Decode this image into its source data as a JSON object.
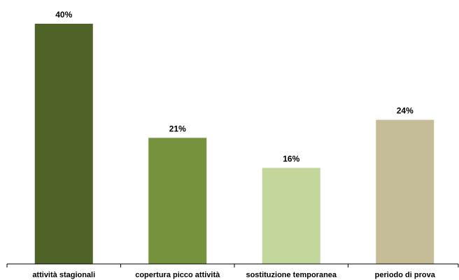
{
  "chart_data": {
    "type": "bar",
    "categories": [
      "attività stagionali",
      "copertura picco attività",
      "sostituzione temporanea",
      "periodo di prova"
    ],
    "values": [
      40,
      21,
      16,
      24
    ],
    "value_labels": [
      "40%",
      "21%",
      "16%",
      "24%"
    ],
    "colors": [
      "#4f6228",
      "#76923c",
      "#c3d69b",
      "#c4bd97"
    ],
    "ylim": [
      0,
      40
    ],
    "grid": false,
    "legend": "none",
    "title": "",
    "xlabel": "",
    "ylabel": ""
  }
}
